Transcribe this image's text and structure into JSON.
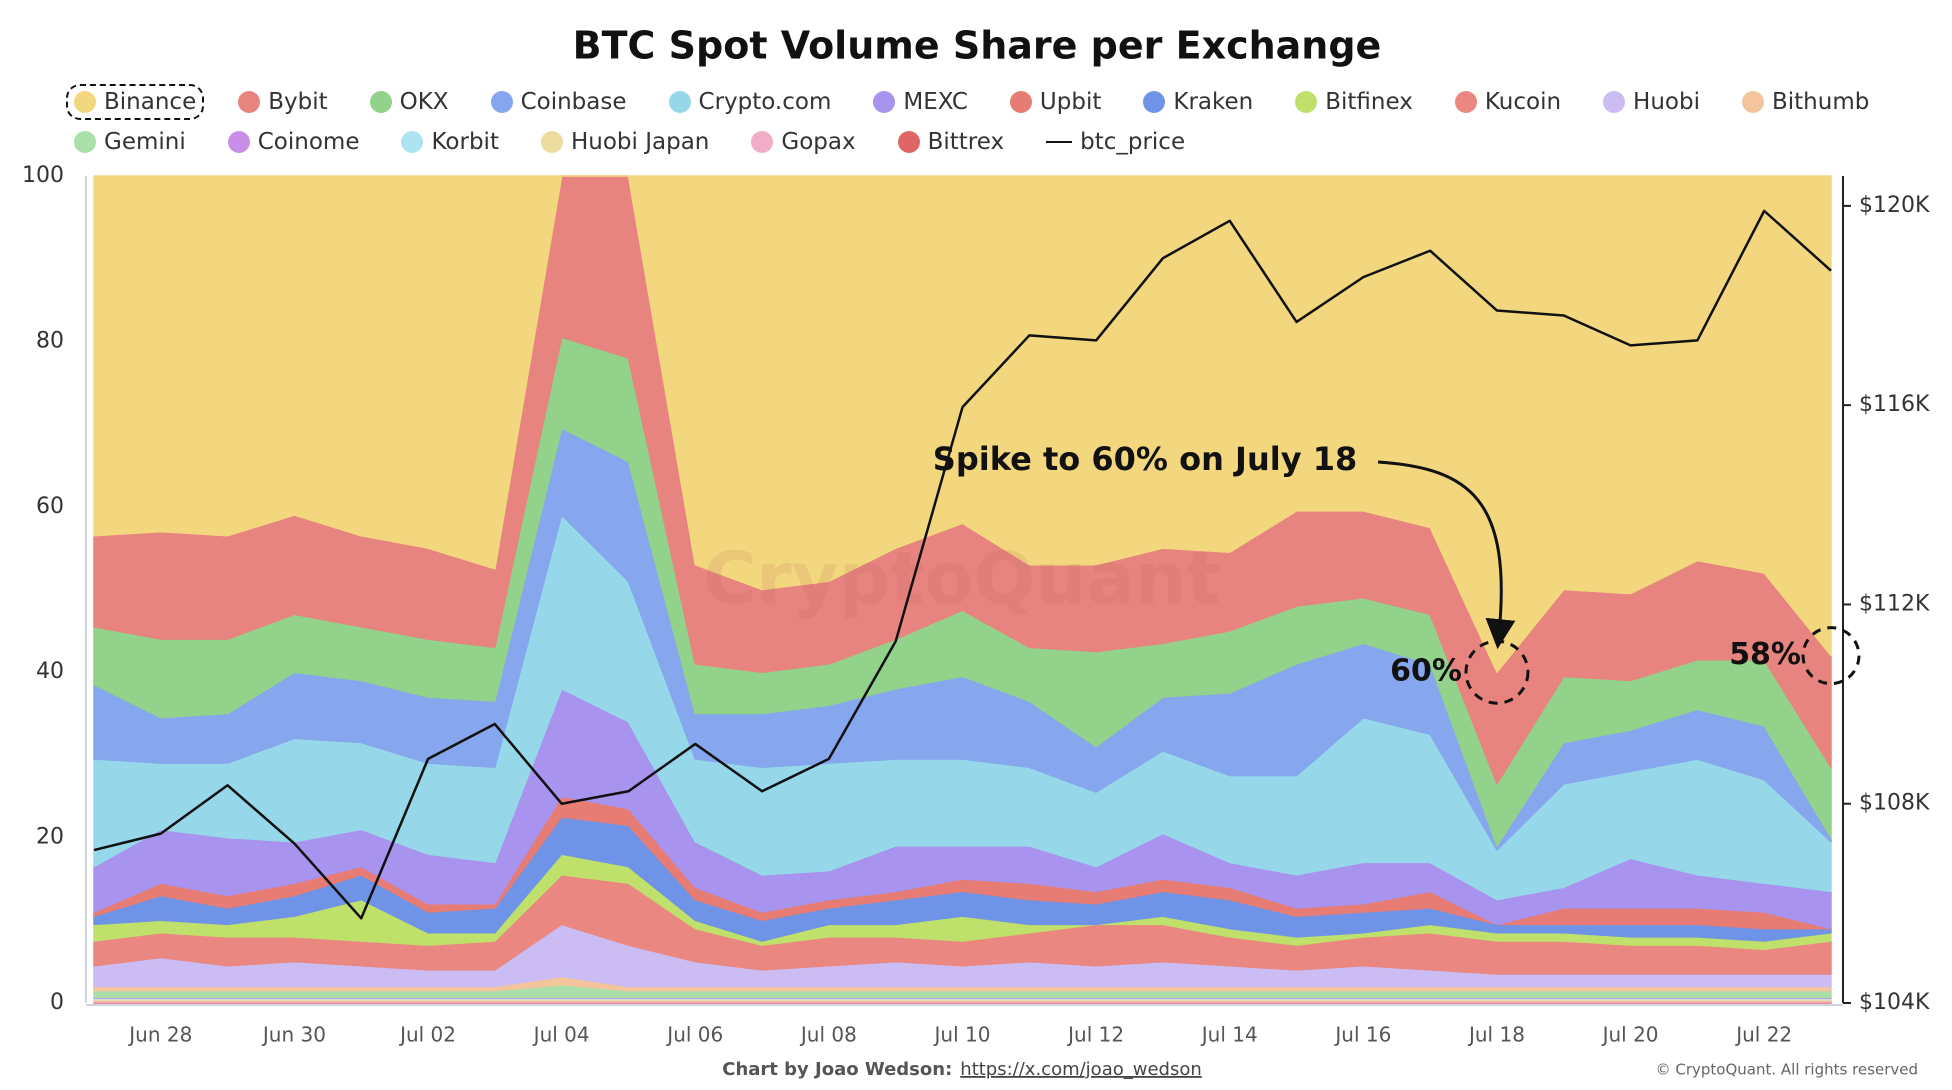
{
  "chart_data": {
    "type": "area",
    "stacked": true,
    "title": "BTC Spot Volume Share per Exchange",
    "categories": [
      null,
      "Jun 28",
      null,
      "Jun 30",
      null,
      "Jul 02",
      null,
      "Jul 04",
      null,
      "Jul 06",
      null,
      "Jul 08",
      null,
      "Jul 10",
      null,
      "Jul 12",
      null,
      "Jul 14",
      null,
      "Jul 16",
      null,
      "Jul 18",
      null,
      "Jul 20",
      null,
      "Jul 22",
      null
    ],
    "ylim": [
      0,
      100
    ],
    "yticks": [
      0,
      20,
      40,
      60,
      80,
      100
    ],
    "y2lim": [
      104000,
      120600
    ],
    "y2ticks": [
      {
        "value": 104000,
        "label": "$104K"
      },
      {
        "value": 108000,
        "label": "$108K"
      },
      {
        "value": 112000,
        "label": "$112K"
      },
      {
        "value": 116000,
        "label": "$116K"
      },
      {
        "value": 120000,
        "label": "$120K"
      }
    ],
    "grid": false,
    "series": [
      {
        "name": "Binance",
        "color": "#f3d77f",
        "values": [
          43.5,
          43,
          43.5,
          41,
          43.5,
          45,
          47.5,
          0,
          0,
          47,
          50,
          49,
          45,
          42,
          47,
          47,
          45,
          45.5,
          40.5,
          40.5,
          42.5,
          60,
          50,
          50.5,
          46.5,
          48,
          58
        ]
      },
      {
        "name": "Bybit",
        "color": "#e8847f",
        "values": [
          11,
          13,
          12.5,
          12,
          11,
          11,
          9.5,
          19.5,
          22,
          12,
          10,
          10,
          11,
          10.5,
          10,
          10.5,
          11.5,
          9.5,
          11.5,
          10.5,
          10.5,
          13.5,
          10.5,
          10.5,
          12,
          10.5,
          13.5
        ]
      },
      {
        "name": "OKX",
        "color": "#92d28a",
        "values": [
          7,
          9.5,
          9,
          7,
          6.5,
          7,
          6.5,
          11,
          12.5,
          6,
          5,
          5,
          6,
          8,
          6.5,
          11.5,
          6.5,
          7.5,
          7,
          5.5,
          6,
          7.5,
          8,
          6,
          6,
          8,
          8.5
        ]
      },
      {
        "name": "Coinbase",
        "color": "#86a6ee",
        "values": [
          9,
          5.5,
          6,
          8,
          7.5,
          8,
          8,
          10.5,
          14.5,
          5.5,
          6.5,
          7,
          8.5,
          10,
          8,
          5.5,
          6.5,
          10,
          13.5,
          9,
          8.5,
          0.5,
          5,
          5,
          6,
          6.5,
          0.5
        ]
      },
      {
        "name": "Crypto.com",
        "color": "#96d8ea",
        "values": [
          13,
          8,
          9,
          12.5,
          10.5,
          11,
          11.5,
          21,
          17,
          10,
          13,
          13,
          10.5,
          10.5,
          9.5,
          9,
          10,
          10.5,
          12,
          17.5,
          15.5,
          6,
          12.5,
          10.5,
          14,
          12.5,
          6
        ]
      },
      {
        "name": "MEXC",
        "color": "#a893ee",
        "values": [
          5.5,
          6.5,
          7,
          5,
          4.5,
          6,
          5,
          13,
          10.5,
          5.5,
          4.5,
          3.5,
          5.5,
          4,
          4.5,
          3,
          5.5,
          3,
          4,
          5,
          3.5,
          3,
          2.5,
          6,
          4,
          3.5,
          4.5
        ]
      },
      {
        "name": "Upbit",
        "color": "#e67c74",
        "values": [
          0.5,
          1.5,
          1.5,
          1.5,
          1,
          1,
          0.5,
          2.5,
          2,
          1.5,
          1,
          1,
          1,
          1.5,
          2,
          1.5,
          1.5,
          1.5,
          1,
          1,
          2,
          0,
          2,
          2,
          2,
          2,
          0
        ]
      },
      {
        "name": "Kraken",
        "color": "#6f93e6",
        "values": [
          1,
          3,
          2,
          2.5,
          3,
          2.5,
          3,
          4.5,
          5,
          2.5,
          2.5,
          2,
          3,
          3,
          3,
          2.5,
          3,
          3.5,
          2.5,
          2.5,
          2,
          1,
          1,
          1.5,
          1.5,
          1.5,
          0.5
        ]
      },
      {
        "name": "Bitfinex",
        "color": "#bfe06a",
        "values": [
          2,
          1.5,
          1.5,
          2.5,
          5,
          1.5,
          1,
          2.5,
          2,
          1,
          0.5,
          1.5,
          1.5,
          3,
          1,
          0,
          1,
          1,
          1,
          0.5,
          1,
          1,
          1,
          1,
          1,
          1,
          1
        ]
      },
      {
        "name": "Kucoin",
        "color": "#ea8781",
        "values": [
          3,
          3,
          3.5,
          3,
          3,
          3,
          3.5,
          6,
          7.5,
          4,
          3,
          3.5,
          3,
          3,
          3.5,
          5,
          4.5,
          3.5,
          3,
          3.5,
          4.5,
          4,
          4,
          3.5,
          3.5,
          3,
          4
        ]
      },
      {
        "name": "Huobi",
        "color": "#cbbcf4",
        "values": [
          2.5,
          3.5,
          2.5,
          3,
          2.5,
          2,
          2,
          6.3,
          5,
          3,
          2,
          2.5,
          3,
          2.5,
          3,
          2.5,
          3,
          2.5,
          2,
          2.5,
          2,
          1.5,
          1.5,
          1.5,
          1.5,
          1.5,
          1.5
        ]
      },
      {
        "name": "Bithumb",
        "color": "#f4c49c",
        "values": [
          0.5,
          0.5,
          0.5,
          0.5,
          0.5,
          0.5,
          0.5,
          1,
          0.5,
          0.5,
          0.5,
          0.5,
          0.5,
          0.5,
          0.5,
          0.5,
          0.5,
          0.5,
          0.5,
          0.5,
          0.5,
          0.5,
          0.5,
          0.5,
          0.5,
          0.5,
          0.5
        ]
      },
      {
        "name": "Gemini",
        "color": "#abdfa9",
        "values": [
          0.8,
          0.8,
          0.8,
          0.8,
          0.8,
          0.8,
          0.8,
          1.5,
          0.8,
          0.8,
          0.8,
          0.8,
          0.8,
          0.8,
          0.8,
          0.8,
          0.8,
          0.8,
          0.8,
          0.8,
          0.8,
          0.8,
          0.8,
          0.8,
          0.8,
          0.8,
          0.8
        ]
      },
      {
        "name": "Coinome",
        "color": "#c98ee6",
        "values": [
          0.1,
          0.1,
          0.1,
          0.1,
          0.1,
          0.1,
          0.1,
          0.1,
          0.1,
          0.1,
          0.1,
          0.1,
          0.1,
          0.1,
          0.1,
          0.1,
          0.1,
          0.1,
          0.1,
          0.1,
          0.1,
          0.1,
          0.1,
          0.1,
          0.1,
          0.1,
          0.1
        ]
      },
      {
        "name": "Korbit",
        "color": "#aee3f1",
        "values": [
          0.1,
          0.1,
          0.1,
          0.1,
          0.1,
          0.1,
          0.1,
          0.1,
          0.1,
          0.1,
          0.1,
          0.1,
          0.1,
          0.1,
          0.1,
          0.1,
          0.1,
          0.1,
          0.1,
          0.1,
          0.1,
          0.1,
          0.1,
          0.1,
          0.1,
          0.1,
          0.1
        ]
      },
      {
        "name": "Huobi Japan",
        "color": "#ecdc9e",
        "values": [
          0.2,
          0.2,
          0.2,
          0.2,
          0.2,
          0.2,
          0.2,
          0.2,
          0.2,
          0.2,
          0.2,
          0.2,
          0.2,
          0.2,
          0.2,
          0.2,
          0.2,
          0.2,
          0.2,
          0.2,
          0.2,
          0.2,
          0.2,
          0.2,
          0.2,
          0.2,
          0.2
        ]
      },
      {
        "name": "Gopax",
        "color": "#f2adc9",
        "values": [
          0.2,
          0.2,
          0.2,
          0.2,
          0.2,
          0.2,
          0.2,
          0.2,
          0.2,
          0.2,
          0.2,
          0.2,
          0.2,
          0.2,
          0.2,
          0.2,
          0.2,
          0.2,
          0.2,
          0.2,
          0.2,
          0.2,
          0.2,
          0.2,
          0.2,
          0.2,
          0.2
        ]
      },
      {
        "name": "Bittrex",
        "color": "#e06666",
        "values": [
          0.1,
          0.1,
          0.1,
          0.1,
          0.1,
          0.1,
          0.1,
          0.1,
          0.1,
          0.1,
          0.1,
          0.1,
          0.1,
          0.1,
          0.1,
          0.1,
          0.1,
          0.1,
          0.1,
          0.1,
          0.1,
          0.1,
          0.1,
          0.1,
          0.1,
          0.1,
          0.1
        ]
      },
      {
        "name": "btc_price",
        "color": "#111111",
        "axis": "y2",
        "values": [
          107070,
          107400,
          108370,
          107200,
          105700,
          108900,
          109600,
          108000,
          108250,
          109200,
          108250,
          108900,
          111260,
          115960,
          117400,
          117300,
          118950,
          119700,
          117670,
          118570,
          119100,
          117900,
          117800,
          117200,
          117300,
          119900,
          118700
        ]
      }
    ],
    "watermark": "CryptoQuant",
    "annotations": [
      "Spike to 60% on July 18",
      "60%",
      "58%"
    ],
    "footer": {
      "credit": "Chart by Joao Wedson:",
      "link": "https://x.com/joao_wedson",
      "copyright": "© CryptoQuant. All rights reserved"
    }
  }
}
